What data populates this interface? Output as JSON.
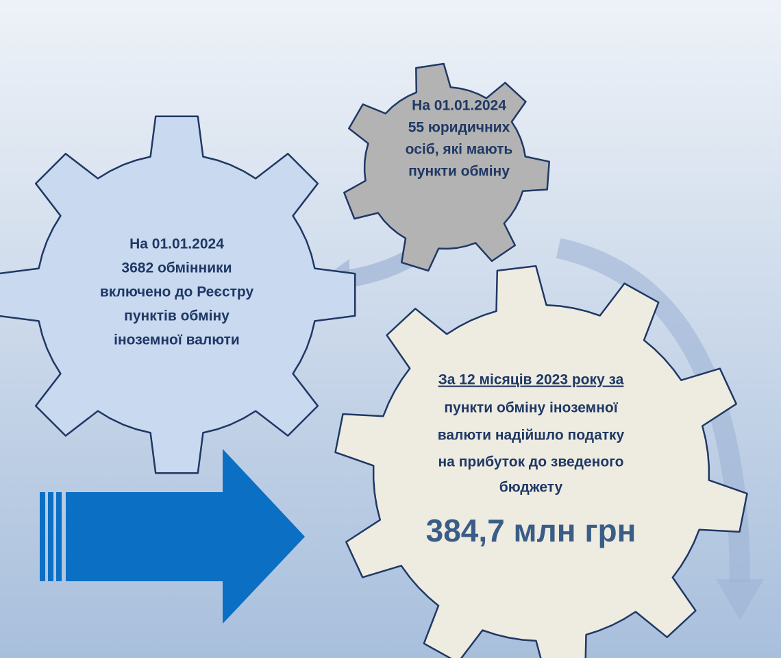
{
  "gears": [
    {
      "lines": [
        "На 01.01.2024",
        "55 юридичних",
        "осіб, які мають",
        "пункти обміну"
      ]
    },
    {
      "lines": [
        "На 01.01.2024",
        "3682 обмінники",
        "включено до Реєстру",
        "пунктів обміну",
        "іноземної валюти"
      ]
    },
    {
      "lines": [
        "За 12 місяців 2023 року за",
        "пункти обміну  іноземної",
        "валюти надійшло податку",
        "на прибуток до зведеного",
        "бюджету"
      ],
      "amount": "384,7 млн грн"
    }
  ]
}
